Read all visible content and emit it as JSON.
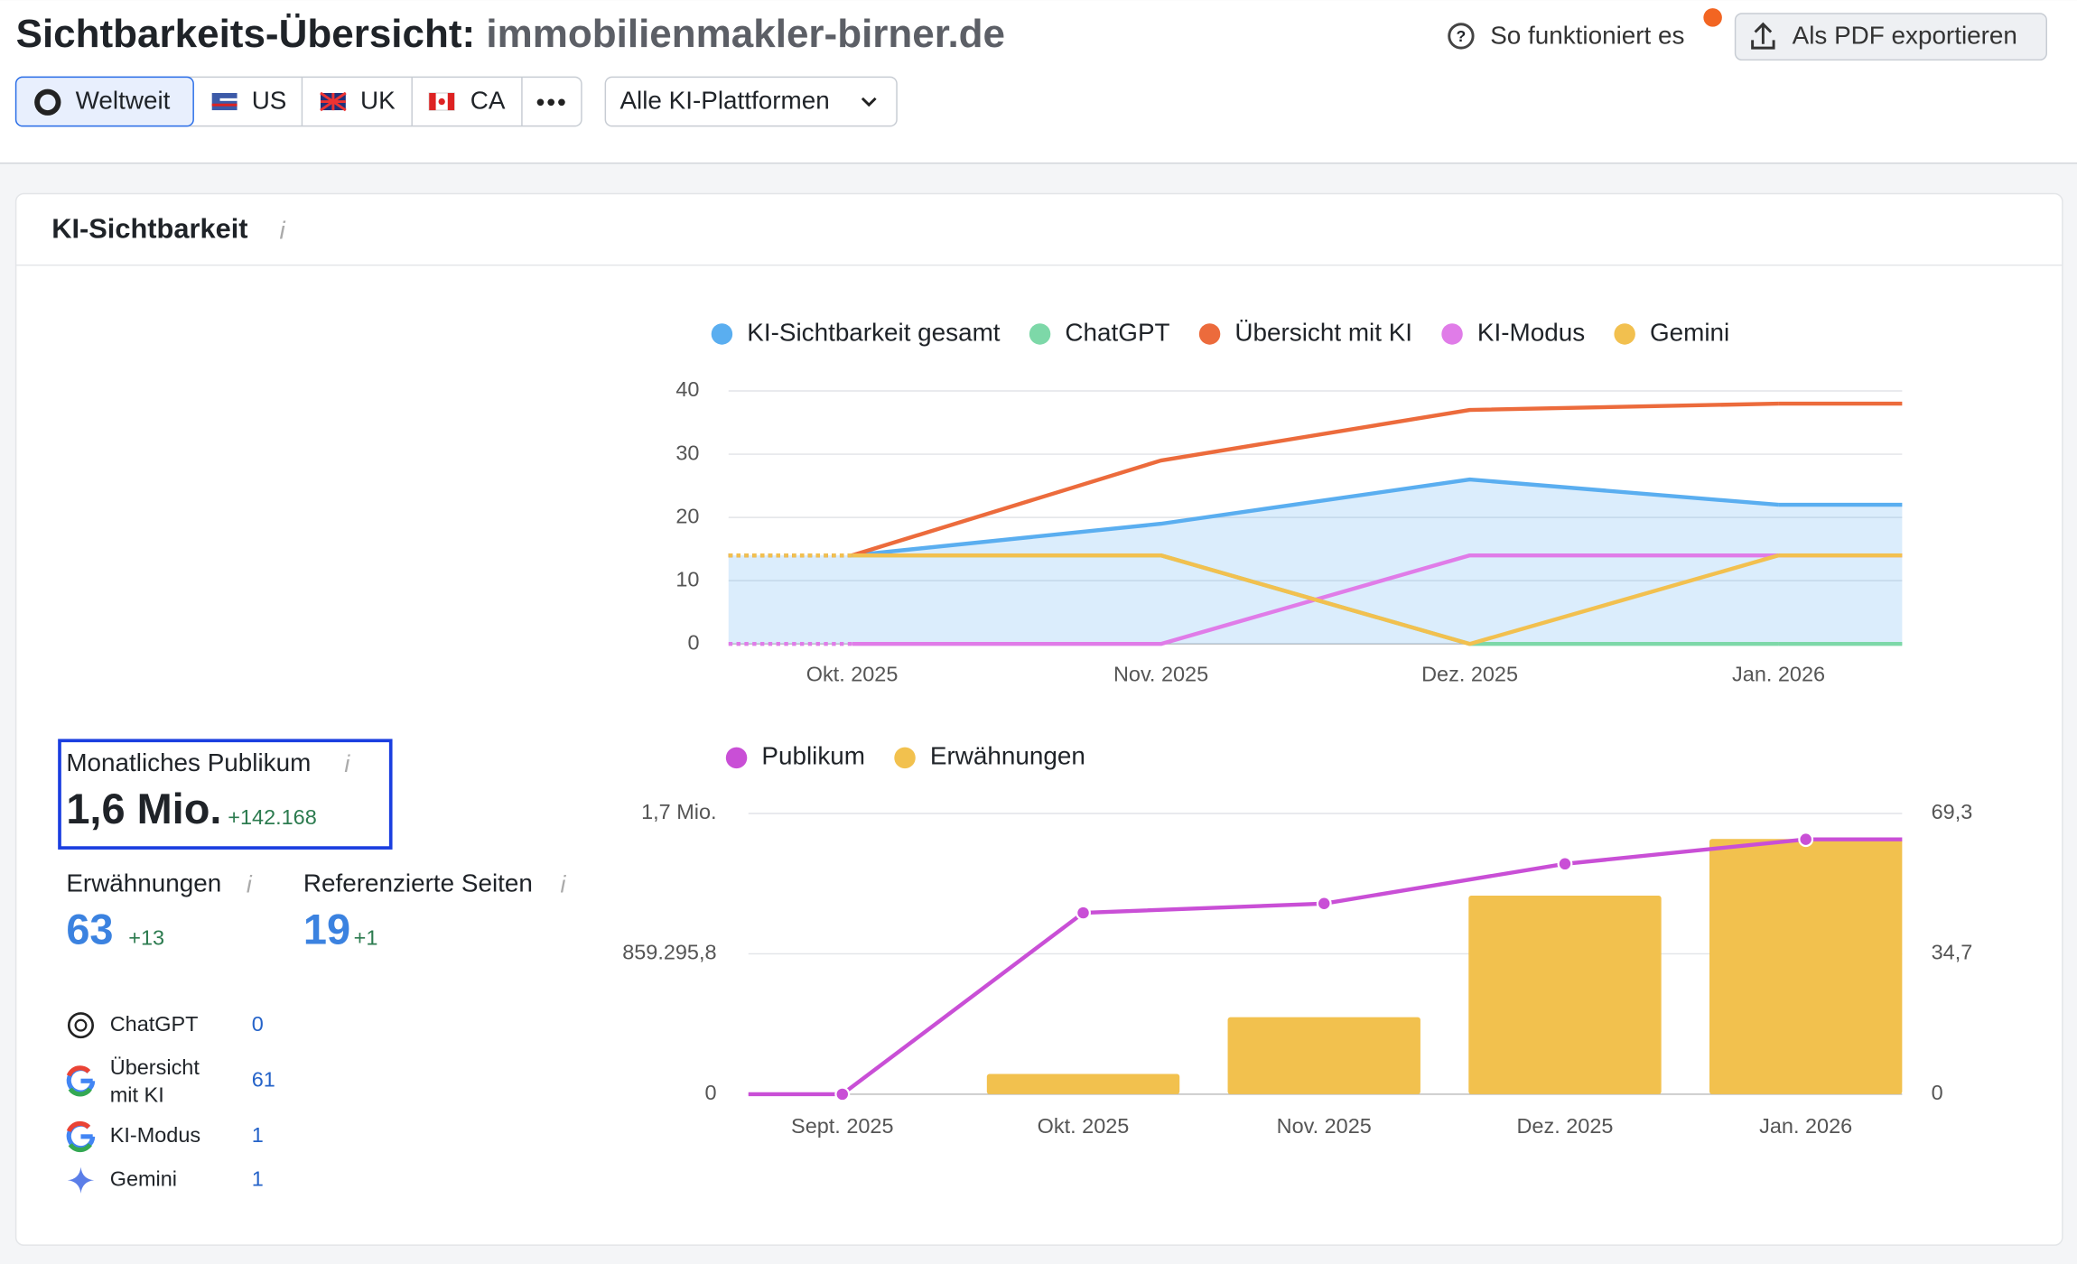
{
  "header": {
    "title": "Sichtbarkeits-Übersicht:",
    "domain": "immobilienmakler-birner.de",
    "help": "So funktioniert es",
    "export": "Als PDF exportieren"
  },
  "regions": [
    "Weltweit",
    "US",
    "UK",
    "CA"
  ],
  "platform_filter": "Alle KI-Plattformen",
  "panel_title": "KI-Sichtbarkeit",
  "metrics": {
    "audience": {
      "label": "Monatliches Publikum",
      "value": "1,6 Mio.",
      "change": "+142.168"
    },
    "mentions": {
      "label": "Erwähnungen",
      "value": 63,
      "change": "+13"
    },
    "pages": {
      "label": "Referenzierte Seiten",
      "value": 19,
      "change": "+1"
    }
  },
  "platforms": [
    {
      "name": "ChatGPT",
      "value": 0
    },
    {
      "name": "Übersicht mit KI",
      "value": 61
    },
    {
      "name": "KI-Modus",
      "value": 1
    },
    {
      "name": "Gemini",
      "value": 1
    }
  ],
  "chart_data": [
    {
      "type": "line",
      "categories": [
        "Okt. 2025",
        "Nov. 2025",
        "Dez. 2025",
        "Jan. 2026"
      ],
      "series": [
        {
          "name": "KI-Sichtbarkeit gesamt",
          "color": "#5aaef0",
          "values": [
            14,
            19,
            26,
            22
          ],
          "fill": true
        },
        {
          "name": "ChatGPT",
          "color": "#7dd8a8",
          "values": [
            14,
            14,
            0,
            0
          ]
        },
        {
          "name": "Übersicht mit KI",
          "color": "#ec6b3c",
          "values": [
            14,
            29,
            37,
            38
          ]
        },
        {
          "name": "KI-Modus",
          "color": "#e07ce8",
          "values": [
            0,
            0,
            14,
            14
          ]
        },
        {
          "name": "Gemini",
          "color": "#f2c04f",
          "values": [
            14,
            14,
            0,
            14
          ]
        }
      ],
      "ylim": [
        0,
        40
      ],
      "yticks": [
        0,
        10,
        20,
        30,
        40
      ],
      "grid": true
    },
    {
      "type": "bar-line",
      "categories": [
        "Sept. 2025",
        "Okt. 2025",
        "Nov. 2025",
        "Dez. 2025",
        "Jan. 2026"
      ],
      "series": [
        {
          "name": "Publikum",
          "color": "#c94fd6",
          "type": "line",
          "values": [
            0,
            1110000,
            1167000,
            1410000,
            1560000
          ]
        },
        {
          "name": "Erwähnungen",
          "color": "#f2c14e",
          "type": "bar",
          "axis": "y2",
          "values": [
            0,
            5,
            19,
            49,
            63
          ]
        }
      ],
      "ylim": [
        0,
        1718591.6
      ],
      "yticks": [
        0,
        {
          "value": 859295.8,
          "label": "859.295,8"
        },
        {
          "value": 1718591.6,
          "label": "1,7 Mio."
        }
      ],
      "y2lim": [
        0,
        69.3
      ],
      "y2ticks": [
        0,
        {
          "value": 34.7,
          "label": "34,7"
        },
        {
          "value": 69.3,
          "label": "69,3"
        }
      ],
      "grid": true
    }
  ]
}
